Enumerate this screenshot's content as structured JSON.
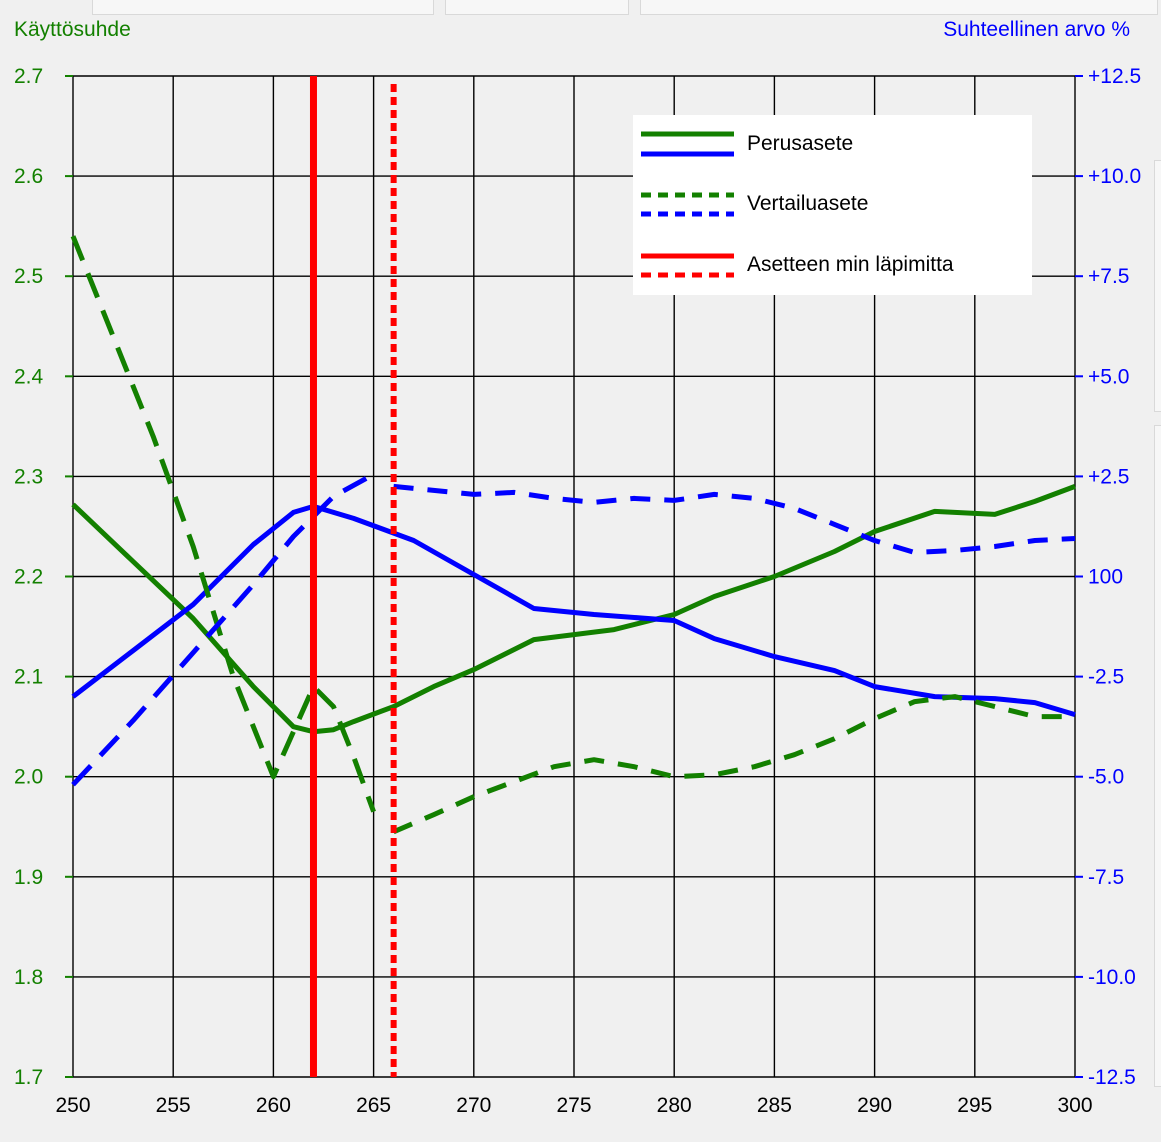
{
  "chart_data": {
    "type": "line",
    "left_axis_title": "Käyttösuhde",
    "right_axis_title": "Suhteellinen arvo %",
    "x_ticks": [
      "250",
      "255",
      "260",
      "265",
      "270",
      "275",
      "280",
      "285",
      "290",
      "295",
      "300"
    ],
    "xlim": [
      250,
      300
    ],
    "y_left_ticks": [
      "1.7",
      "1.8",
      "1.9",
      "2.0",
      "2.1",
      "2.2",
      "2.3",
      "2.4",
      "2.5",
      "2.6",
      "2.7"
    ],
    "ylim_left": [
      1.7,
      2.7
    ],
    "y_right_ticks": [
      "-12.5",
      "-10.0",
      "-7.5",
      "-5.0",
      "-2.5",
      "100",
      "+2.5",
      "+5.0",
      "+7.5",
      "+10.0",
      "+12.5"
    ],
    "ylim_right": [
      -12.5,
      12.5
    ],
    "grid": true,
    "legend_position": "top-right",
    "legend": [
      {
        "label": "Perusasete",
        "style": "solid",
        "colors": [
          "#138000",
          "#0000ff"
        ]
      },
      {
        "label": "Vertailuasete",
        "style": "dotted",
        "colors": [
          "#138000",
          "#0000ff"
        ]
      },
      {
        "label": "Asetteen min läpimitta",
        "style": "solid+dotted",
        "colors": [
          "#ff0000",
          "#ff0000"
        ]
      }
    ],
    "colors": {
      "green": "#138000",
      "blue": "#0000ff",
      "red": "#ff0000"
    },
    "series": [
      {
        "name": "Perusasete",
        "axis": "left",
        "color": "#138000",
        "style": "solid",
        "x": [
          250,
          253,
          256,
          259,
          261,
          262,
          263,
          264,
          266,
          268,
          270,
          273,
          275,
          277,
          280,
          282,
          285,
          288,
          290,
          293,
          296,
          298,
          300
        ],
        "y": [
          2.272,
          2.215,
          2.158,
          2.09,
          2.05,
          2.045,
          2.047,
          2.055,
          2.07,
          2.09,
          2.107,
          2.137,
          2.142,
          2.147,
          2.162,
          2.18,
          2.2,
          2.225,
          2.245,
          2.265,
          2.262,
          2.275,
          2.29
        ]
      },
      {
        "name": "Perusasete",
        "axis": "right",
        "color": "#0000ff",
        "style": "solid",
        "x": [
          250,
          253,
          256,
          259,
          261,
          262,
          264,
          267,
          270,
          273,
          276,
          280,
          282,
          285,
          288,
          290,
          293,
          296,
          298,
          300
        ],
        "y": [
          -3.0,
          -1.85,
          -0.7,
          0.8,
          1.6,
          1.75,
          1.45,
          0.9,
          0.05,
          -0.8,
          -0.95,
          -1.1,
          -1.55,
          -2.0,
          -2.35,
          -2.75,
          -3.0,
          -3.05,
          -3.15,
          -3.45
        ]
      },
      {
        "name": "Vertailuasete",
        "axis": "left",
        "color": "#138000",
        "style": "dashed",
        "x": [
          250,
          252,
          254,
          256,
          258,
          260,
          262,
          263,
          264,
          265
        ],
        "y": [
          2.54,
          2.44,
          2.34,
          2.23,
          2.1,
          2.0,
          2.09,
          2.07,
          2.02,
          1.965
        ]
      },
      {
        "name": "Vertailuasete",
        "axis": "left",
        "color": "#138000",
        "style": "dotted",
        "x": [
          266,
          268,
          270,
          272,
          274,
          276,
          278,
          280,
          282,
          284,
          286,
          288,
          290,
          292,
          294,
          296,
          298,
          300
        ],
        "y": [
          1.945,
          1.962,
          1.98,
          1.995,
          2.01,
          2.017,
          2.01,
          2.0,
          2.002,
          2.01,
          2.022,
          2.038,
          2.058,
          2.075,
          2.08,
          2.07,
          2.06,
          2.06
        ]
      },
      {
        "name": "Vertailuasete",
        "axis": "right",
        "color": "#0000ff",
        "style": "dashed",
        "x": [
          250,
          253,
          256,
          259,
          261,
          263,
          265
        ],
        "y": [
          -5.2,
          -3.6,
          -1.9,
          -0.2,
          1.0,
          2.0,
          2.55
        ]
      },
      {
        "name": "Vertailuasete",
        "axis": "right",
        "color": "#0000ff",
        "style": "dotted",
        "x": [
          266,
          268,
          270,
          272,
          274,
          276,
          278,
          280,
          282,
          284,
          286,
          288,
          290,
          292,
          294,
          296,
          298,
          300
        ],
        "y": [
          2.25,
          2.15,
          2.05,
          2.1,
          1.95,
          1.85,
          1.95,
          1.9,
          2.05,
          1.95,
          1.7,
          1.3,
          0.9,
          0.6,
          0.65,
          0.75,
          0.9,
          0.95
        ]
      }
    ],
    "vertical_lines": [
      {
        "x": 262,
        "color": "#ff0000",
        "style": "solid"
      },
      {
        "x": 266,
        "color": "#ff0000",
        "style": "dotted"
      }
    ]
  }
}
